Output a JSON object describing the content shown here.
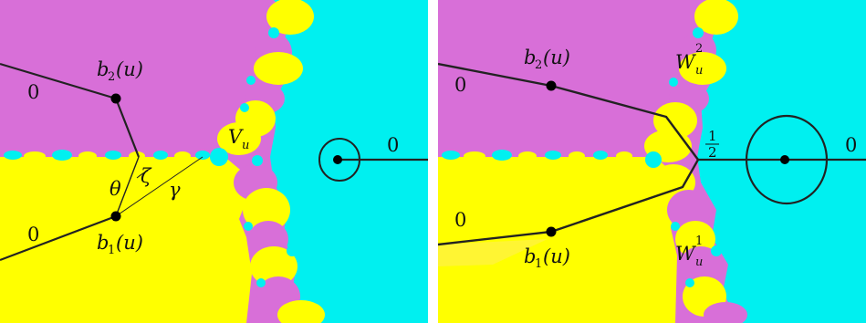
{
  "colors": {
    "magenta": "#d86fd8",
    "yellow": "#ffff00",
    "cyan": "#00f0f0",
    "line": "#222222"
  },
  "left": {
    "zero_top": "0",
    "zero_bottom": "0",
    "zero_right": "0",
    "b2": {
      "base": "b",
      "sub": "2",
      "arg": "(u)"
    },
    "b1": {
      "base": "b",
      "sub": "1",
      "arg": "(u)"
    },
    "V": {
      "base": "V",
      "sub": "u"
    },
    "theta": "θ",
    "zeta": "ζ",
    "gamma": "γ"
  },
  "right": {
    "zero_top": "0",
    "zero_bottom": "0",
    "zero_right": "0",
    "b2": {
      "base": "b",
      "sub": "2",
      "arg": "(u)"
    },
    "b1": {
      "base": "b",
      "sub": "1",
      "arg": "(u)"
    },
    "W2": {
      "base": "W",
      "sub": "u",
      "sup": "2"
    },
    "W1": {
      "base": "W",
      "sub": "u",
      "sup": "1"
    },
    "half": {
      "num": "1",
      "den": "2"
    }
  }
}
